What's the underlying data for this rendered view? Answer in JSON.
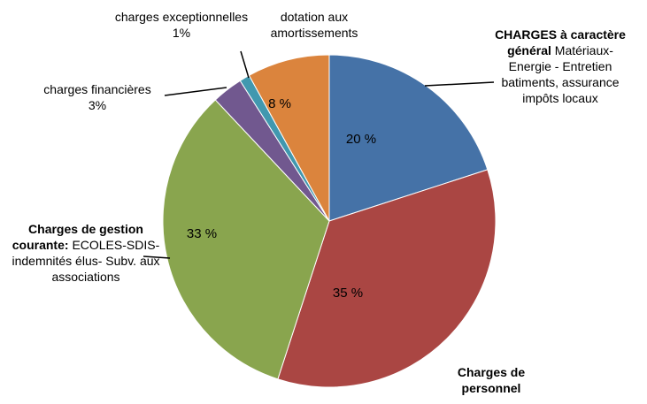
{
  "chart_data": {
    "type": "pie",
    "categories": [
      "CHARGES à caractère général",
      "Charges de personnel",
      "Charges de gestion courante:",
      "charges financières",
      "charges exceptionnelles",
      "dotation aux amortissements"
    ],
    "descriptions": [
      "Matériaux- Energie - Entretien batiments, assurance impôts locaux",
      null,
      "ECOLES-SDIS-indemnités élus- Subv. aux associations",
      null,
      null,
      null
    ],
    "values": [
      20,
      35,
      33,
      3,
      1,
      8
    ],
    "value_labels": [
      "20 %",
      "35 %",
      "33 %",
      "3%",
      "1%",
      "8 %"
    ],
    "colors": [
      "#4572a7",
      "#aa4643",
      "#89a54e",
      "#71588f",
      "#4198af",
      "#db843d"
    ]
  }
}
